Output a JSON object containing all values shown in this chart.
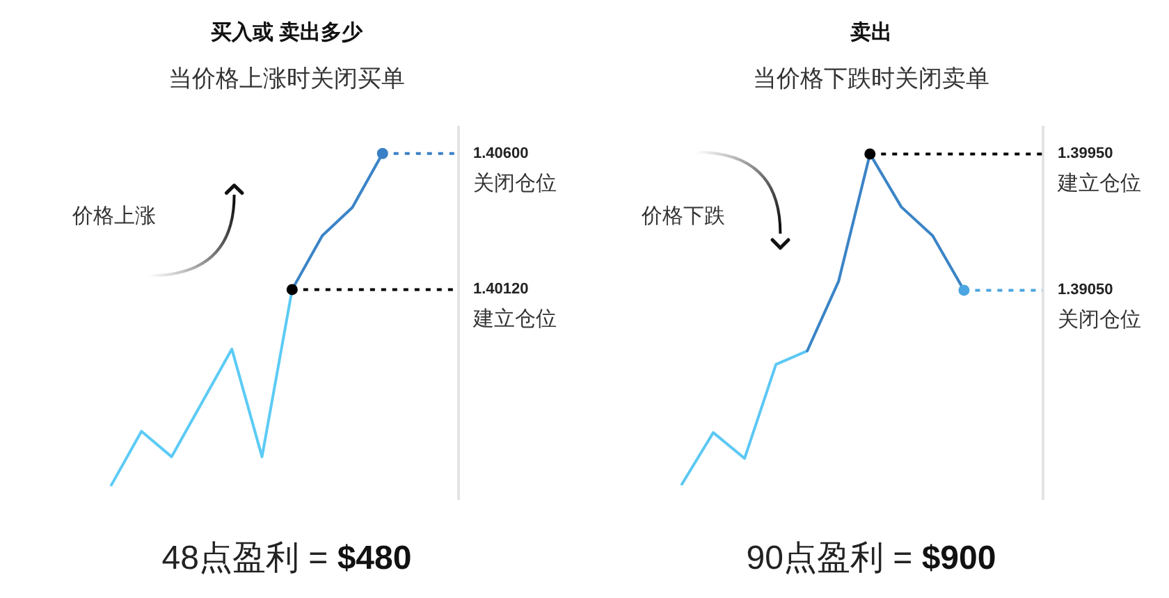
{
  "chart_data": [
    {
      "type": "line",
      "title": "买入或 卖出多少",
      "subtitle": "当价格上涨时关闭买单",
      "categories": [
        null,
        null,
        null,
        null,
        null,
        null,
        null,
        null,
        null,
        null,
        null,
        null
      ],
      "series": [
        {
          "color": "#5ccbf5",
          "values": [
            1.3943,
            1.3962,
            1.3953,
            1.3972,
            1.3991,
            1.3953,
            1.4012,
            null,
            null,
            null,
            null,
            null
          ]
        },
        {
          "color": "#3a84c7",
          "values": [
            null,
            null,
            null,
            null,
            null,
            null,
            1.4012,
            1.4031,
            1.4041,
            1.406,
            null,
            null
          ]
        }
      ],
      "ylim": [
        1.3938,
        1.407
      ],
      "ref_lines": [
        {
          "axis": "y",
          "value": 1.406,
          "label": "1.40600",
          "color": "#3a80c4",
          "line_style": "dotted"
        },
        {
          "axis": "y",
          "value": 1.4012,
          "label": "1.40120",
          "color": "#000000",
          "line_style": "dotted"
        }
      ],
      "annotations": [
        "价格上涨",
        "关闭仓位",
        "建立仓位",
        "48点盈利 = $480"
      ]
    },
    {
      "type": "line",
      "title": "卖出",
      "subtitle": "当价格下跌时关闭卖单",
      "categories": [
        null,
        null,
        null,
        null,
        null,
        null,
        null,
        null,
        null,
        null,
        null,
        null
      ],
      "series": [
        {
          "color": "#5cc8f3",
          "values": [
            1.3777,
            1.3811,
            1.3794,
            1.3856,
            1.3865,
            null,
            null,
            null,
            null,
            null,
            null,
            null
          ]
        },
        {
          "color": "#3b84c6",
          "values": [
            null,
            null,
            null,
            null,
            1.3865,
            1.3911,
            1.3995,
            1.396,
            1.3941,
            1.3905,
            null,
            null
          ]
        }
      ],
      "ylim": [
        1.3767,
        1.4014
      ],
      "ref_lines": [
        {
          "axis": "y",
          "value": 1.3995,
          "label": "1.39950",
          "color": "#000000",
          "line_style": "dotted"
        },
        {
          "axis": "y",
          "value": 1.3905,
          "label": "1.39050",
          "color": "#4ba5e0",
          "line_style": "dotted"
        }
      ],
      "annotations": [
        "价格下跌",
        "建立仓位",
        "关闭仓位",
        "90点盈利 = $900"
      ]
    }
  ]
}
